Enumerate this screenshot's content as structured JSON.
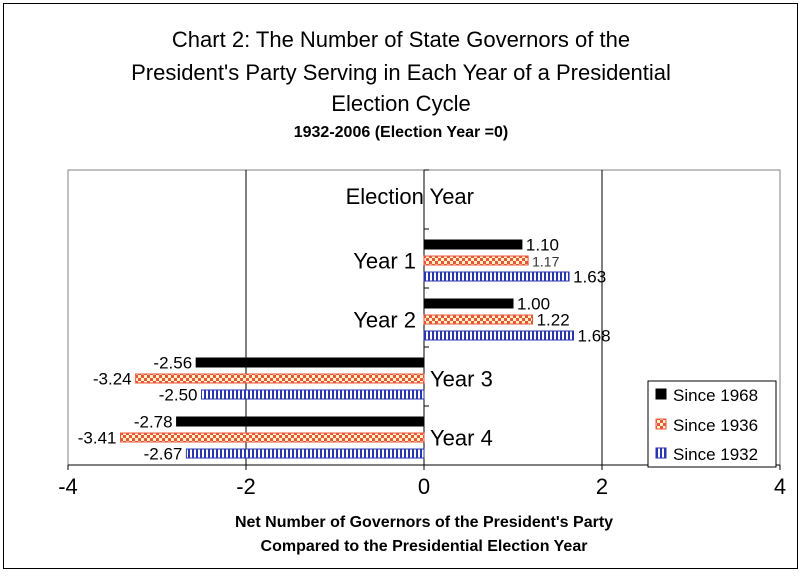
{
  "chart_data": {
    "type": "bar",
    "orientation": "horizontal",
    "title_lines": [
      "Chart 2: The Number of State Governors of the",
      "President's Party Serving in Each Year of a Presidential",
      "Election Cycle"
    ],
    "subtitle": "1932-2006  (Election Year =0)",
    "xlabel_lines": [
      "Net Number of Governors of the President's Party",
      "Compared to the Presidential Election Year"
    ],
    "xlim": [
      -4,
      4
    ],
    "xticks": [
      -4,
      -2,
      0,
      2,
      4
    ],
    "grid": "vertical",
    "legend_position": "bottom-right",
    "categories": [
      "Election Year",
      "Year 1",
      "Year 2",
      "Year 3",
      "Year 4"
    ],
    "series": [
      {
        "name": "Since 1968",
        "color": "#000000",
        "values": [
          0,
          1.1,
          1.0,
          -2.56,
          -2.78
        ],
        "labels": [
          "",
          "1.10",
          "1.00",
          "-2.56",
          "-2.78"
        ]
      },
      {
        "name": "Since 1936",
        "color": "#e8563a",
        "values": [
          0,
          1.17,
          1.22,
          -3.24,
          -3.41
        ],
        "labels": [
          "",
          "1.17",
          "1.22",
          "-3.24",
          "-3.41"
        ]
      },
      {
        "name": "Since 1932",
        "color": "#2a35b0",
        "values": [
          0,
          1.63,
          1.68,
          -2.5,
          -2.67
        ],
        "labels": [
          "",
          "1.63",
          "1.68",
          "-2.50",
          "-2.67"
        ]
      }
    ]
  }
}
